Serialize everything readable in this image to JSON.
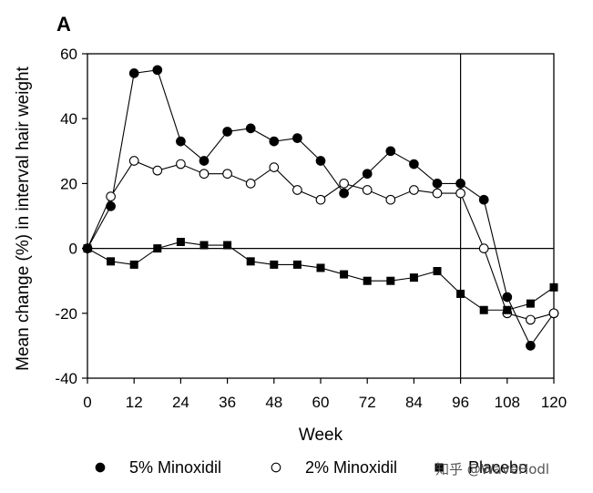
{
  "panel_label": "A",
  "watermark": "知乎 @WaveHodl",
  "chart_data": {
    "type": "line",
    "title": "",
    "xlabel": "Week",
    "ylabel": "Mean change (%) in interval hair weight",
    "xlim": [
      0,
      120
    ],
    "ylim": [
      -40,
      60
    ],
    "xticks": [
      0,
      12,
      24,
      36,
      48,
      60,
      72,
      84,
      96,
      108,
      120
    ],
    "yticks": [
      -40,
      -20,
      0,
      20,
      40,
      60
    ],
    "reference_lines": {
      "y": 0,
      "x": 96
    },
    "grid": false,
    "legend_position": "bottom",
    "series": [
      {
        "name": "5% Minoxidil",
        "marker": "filled-circle",
        "color": "#000000",
        "x": [
          0,
          6,
          12,
          18,
          24,
          30,
          36,
          42,
          48,
          54,
          60,
          66,
          72,
          78,
          84,
          90,
          96,
          102,
          108,
          114,
          120
        ],
        "y": [
          0,
          13,
          54,
          55,
          33,
          27,
          36,
          37,
          33,
          34,
          27,
          17,
          23,
          30,
          26,
          20,
          20,
          15,
          -15,
          -30,
          -20
        ]
      },
      {
        "name": "2% Minoxidil",
        "marker": "open-circle",
        "color": "#000000",
        "x": [
          0,
          6,
          12,
          18,
          24,
          30,
          36,
          42,
          48,
          54,
          60,
          66,
          72,
          78,
          84,
          90,
          96,
          102,
          108,
          114,
          120
        ],
        "y": [
          0,
          16,
          27,
          24,
          26,
          23,
          23,
          20,
          25,
          18,
          15,
          20,
          18,
          15,
          18,
          17,
          17,
          0,
          -20,
          -22,
          -20
        ]
      },
      {
        "name": "Placebo",
        "marker": "filled-square",
        "color": "#000000",
        "x": [
          0,
          6,
          12,
          18,
          24,
          30,
          36,
          42,
          48,
          54,
          60,
          66,
          72,
          78,
          84,
          90,
          96,
          102,
          108,
          114,
          120
        ],
        "y": [
          0,
          -4,
          -5,
          0,
          2,
          1,
          1,
          -4,
          -5,
          -5,
          -6,
          -8,
          -10,
          -10,
          -9,
          -7,
          -14,
          -19,
          -19,
          -17,
          -12
        ]
      }
    ]
  }
}
